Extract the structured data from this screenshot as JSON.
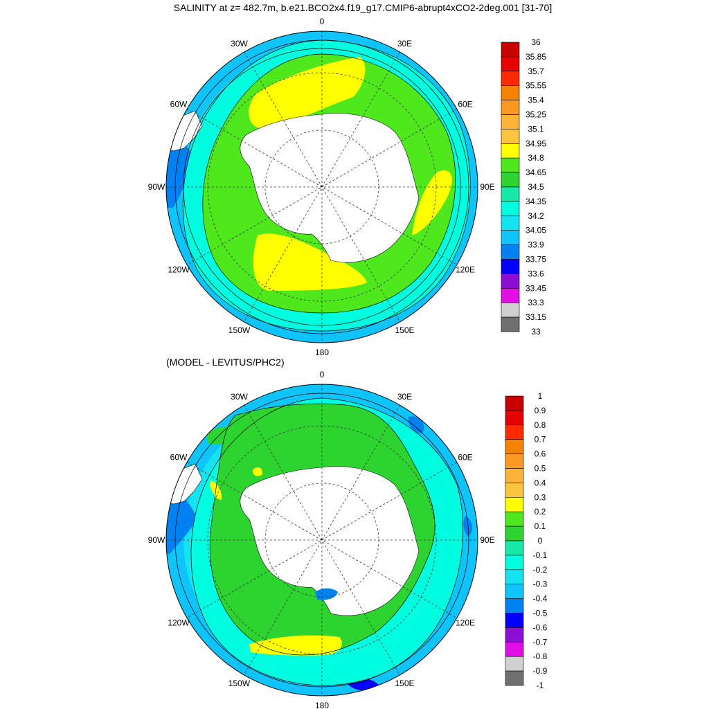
{
  "title": "SALINITY at z= 482.7m, b.e21.BCO2x4.f19_g17.CMIP6-abrupt4xCO2-2deg.001 [31-70]",
  "subtitle": "(MODEL - LEVITUS/PHC2)",
  "lon_labels": [
    "0",
    "30E",
    "60E",
    "90E",
    "120E",
    "150E",
    "180",
    "150W",
    "120W",
    "90W",
    "60W",
    "30W"
  ],
  "panels": [
    {
      "name": "salinity",
      "colorbar": {
        "labels": [
          "36",
          "35.85",
          "35.7",
          "35.55",
          "35.4",
          "35.25",
          "35.1",
          "34.95",
          "34.8",
          "34.65",
          "34.5",
          "34.35",
          "34.2",
          "34.05",
          "33.9",
          "33.75",
          "33.6",
          "33.45",
          "33.3",
          "33.15",
          "33"
        ],
        "colors": [
          "#c80000",
          "#e60000",
          "#ff2a00",
          "#f58200",
          "#fb9922",
          "#fdb33a",
          "#fec43f",
          "#ffff00",
          "#4fe81d",
          "#2dd32e",
          "#18e9a6",
          "#00fde0",
          "#13e4ef",
          "#0ec4fb",
          "#0081f1",
          "#0000ff",
          "#8d0fd6",
          "#e20ee6",
          "#d0d0d0",
          "#707070"
        ]
      }
    },
    {
      "name": "difference",
      "colorbar": {
        "labels": [
          "1",
          "0.9",
          "0.8",
          "0.7",
          "0.6",
          "0.5",
          "0.4",
          "0.3",
          "0.2",
          "0.1",
          "0",
          "-0.1",
          "-0.2",
          "-0.3",
          "-0.4",
          "-0.5",
          "-0.6",
          "-0.7",
          "-0.8",
          "-0.9",
          "-1"
        ],
        "colors": [
          "#c80000",
          "#e60000",
          "#ff2a00",
          "#f58200",
          "#fb9922",
          "#fdb33a",
          "#fec43f",
          "#ffff00",
          "#4fe81d",
          "#2dd32e",
          "#18e9a6",
          "#00fde0",
          "#13e4ef",
          "#0ec4fb",
          "#0081f1",
          "#0000ff",
          "#8d0fd6",
          "#e20ee6",
          "#d0d0d0",
          "#707070"
        ]
      }
    }
  ]
}
